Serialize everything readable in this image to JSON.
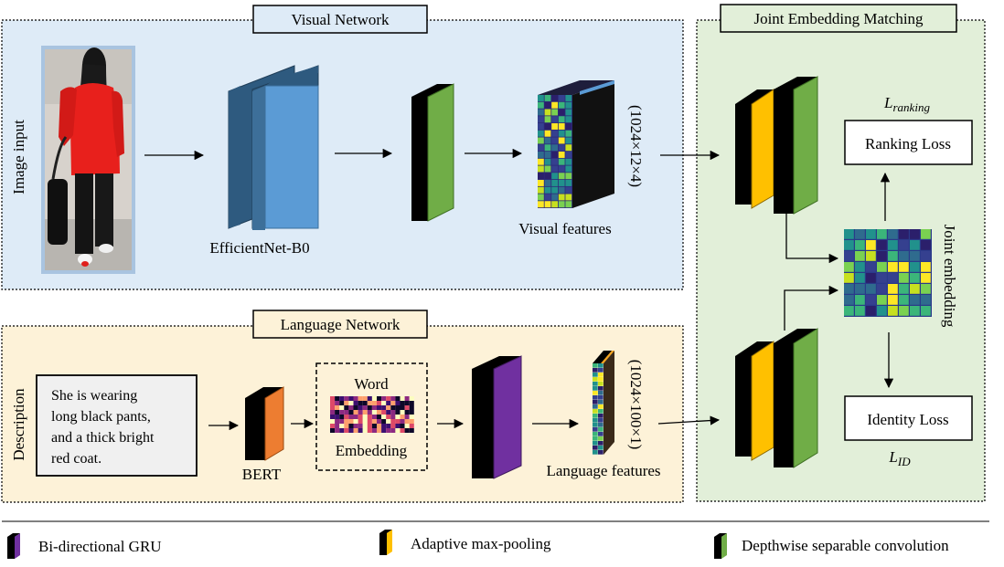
{
  "panels": {
    "visual": {
      "title": "Visual Network",
      "bg": "#deebf7"
    },
    "language": {
      "title": "Language Network",
      "bg": "#fdf2d8"
    },
    "joint": {
      "title": "Joint Embedding Matching",
      "bg": "#e2efd9"
    }
  },
  "visual": {
    "input_label": "Image input",
    "backbone_label": "EfficientNet-B0",
    "features_label": "Visual features",
    "features_dim": "(1024×12×4)"
  },
  "language": {
    "input_label": "Description",
    "description_text": [
      "She is wearing",
      "long black pants,",
      "and a thick bright",
      "red coat."
    ],
    "bert_label": "BERT",
    "embedding_top": "Word",
    "embedding_bottom": "Embedding",
    "features_label": "Language features",
    "features_dim": "(1024×100×1)"
  },
  "joint": {
    "embedding_label": "Joint embedding",
    "ranking_loss": "Ranking Loss",
    "identity_loss": "Identity Loss",
    "ranking_symbol": {
      "base": "L",
      "sub": "ranking"
    },
    "id_symbol": {
      "base": "L",
      "sub": "ID"
    }
  },
  "legend": [
    {
      "label": "Bi-directional GRU",
      "color": "#7030a0"
    },
    {
      "label": "Adaptive max-pooling",
      "color": "#ffc000"
    },
    {
      "label": "Depthwise separable convolution",
      "color": "#70ad47"
    }
  ],
  "colors": {
    "backbone": "#5b9bd5",
    "backbone_dark": "#2e5a7f",
    "bert": "#ed7d31",
    "gru": "#7030a0",
    "pool": "#ffc000",
    "conv": "#70ad47",
    "coat": "#e8201c"
  }
}
